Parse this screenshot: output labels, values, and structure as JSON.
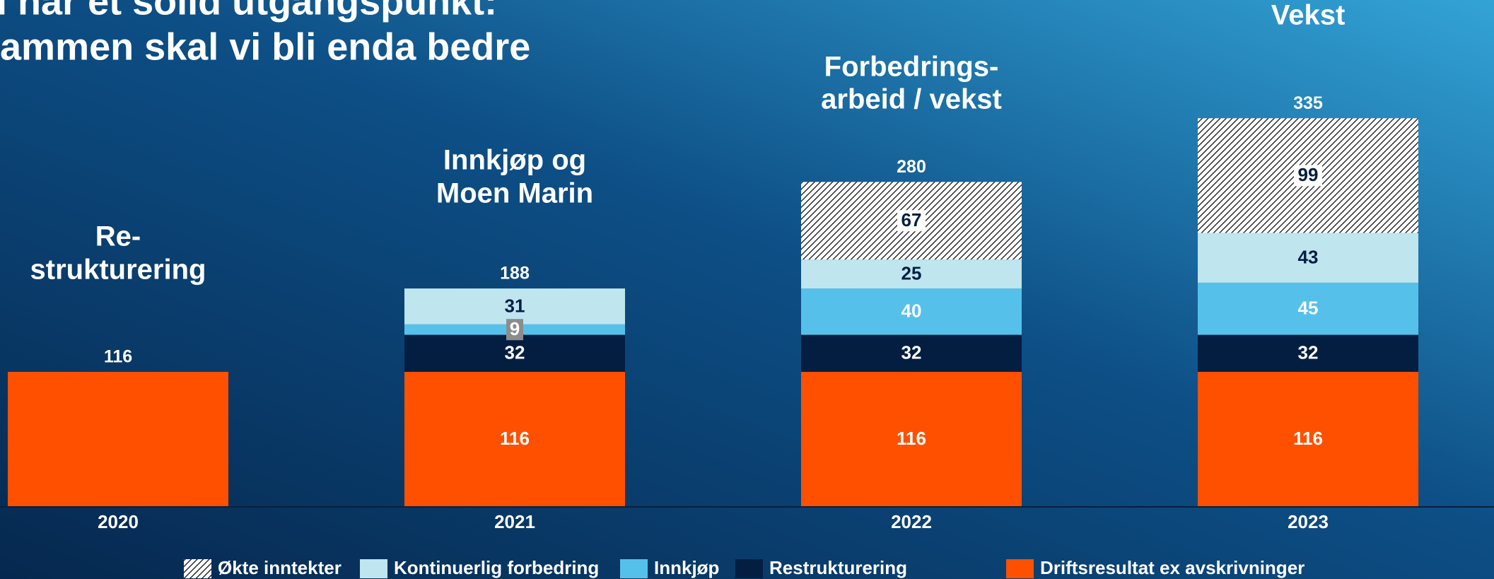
{
  "chart_data": {
    "type": "stacked-bar",
    "title": [
      "Vi har et solid utgangspunkt:",
      "Sammen skal vi bli enda bedre"
    ],
    "categories": [
      "2020",
      "2021",
      "2022",
      "2023"
    ],
    "annotations": [
      [
        "Re-",
        "strukturering"
      ],
      [
        "Innkjøp og",
        "Moen Marin"
      ],
      [
        "Forbedrings-",
        "arbeid / vekst"
      ],
      [
        "Vekst"
      ]
    ],
    "totals": [
      116,
      188,
      280,
      335
    ],
    "series": [
      {
        "name": "Driftsresultat ex avskrivninger",
        "color": "#ff5000",
        "values": [
          116,
          116,
          116,
          116
        ]
      },
      {
        "name": "Restrukturering",
        "color": "#041e42",
        "values": [
          null,
          32,
          32,
          32
        ]
      },
      {
        "name": "Innkjøp",
        "color": "#55c1ea",
        "values": [
          null,
          9,
          40,
          45
        ]
      },
      {
        "name": "Kontinuerlig forbedring",
        "color": "#bfe5ef",
        "values": [
          null,
          31,
          25,
          43
        ]
      },
      {
        "name": "Økte inntekter",
        "color": "#ffffff",
        "pattern": "diagonal-hatch",
        "values": [
          null,
          null,
          67,
          99
        ]
      }
    ],
    "legend": "bottom"
  }
}
